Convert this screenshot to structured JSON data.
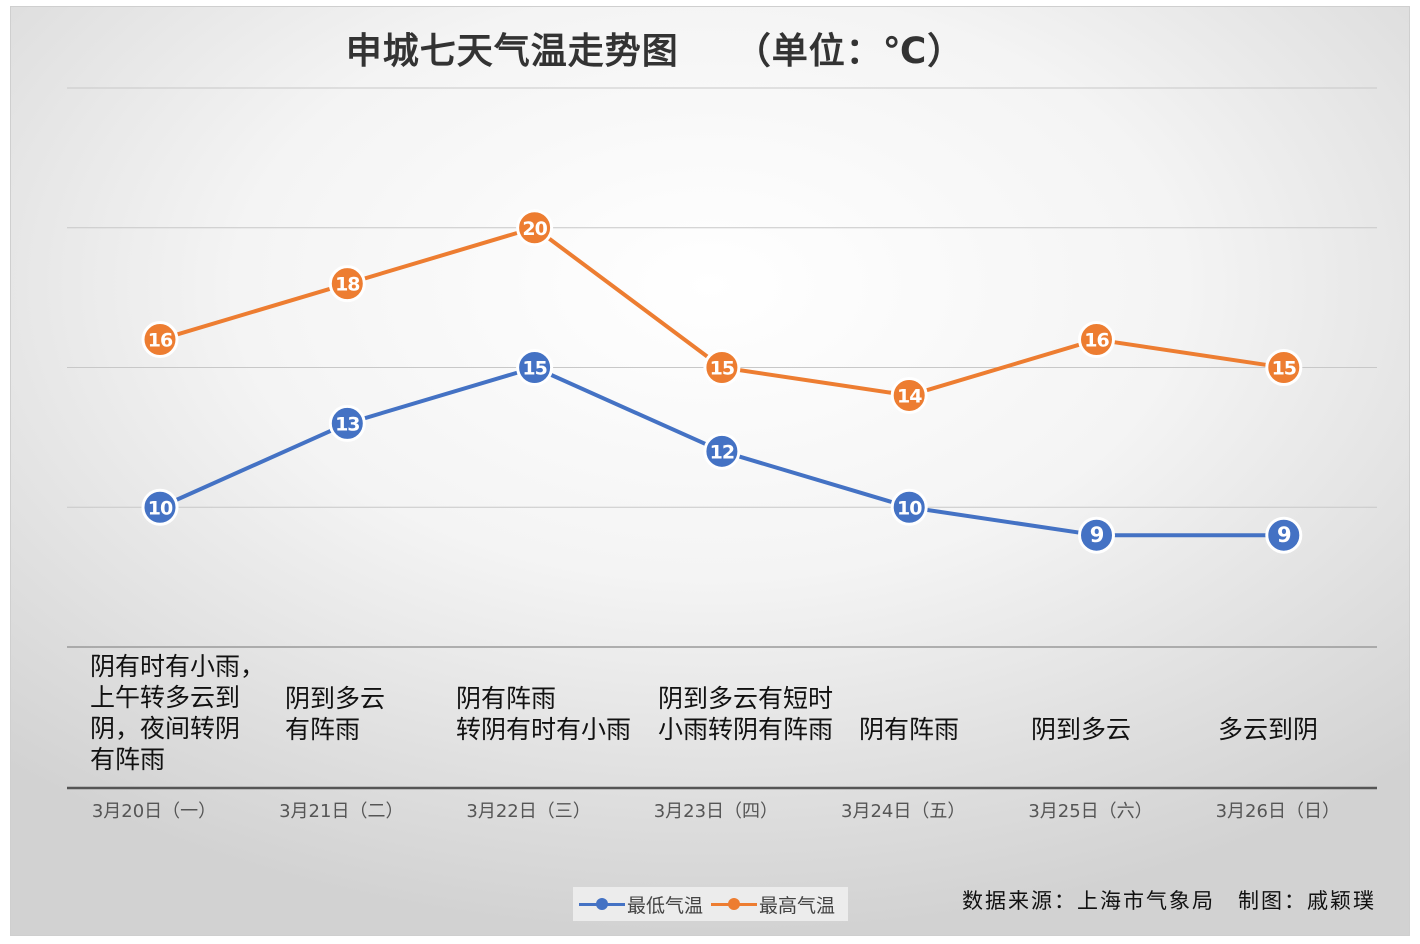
{
  "chart_data": {
    "type": "line",
    "title": "申城七天气温走势图　　（单位：℃）",
    "categories": [
      "3月20日（一）",
      "3月21日（二）",
      "3月22日（三）",
      "3月23日（四）",
      "3月24日（五）",
      "3月25日（六）",
      "3月26日（日）"
    ],
    "series": [
      {
        "name": "最低气温",
        "color": "#4472c4",
        "values": [
          10,
          13,
          15,
          12,
          10,
          9,
          9
        ]
      },
      {
        "name": "最高气温",
        "color": "#ed7d31",
        "values": [
          16,
          18,
          20,
          15,
          14,
          16,
          15
        ]
      }
    ],
    "ylim": [
      5,
      25
    ],
    "grid": true,
    "data_labels": true,
    "legend_position": "bottom",
    "weather": [
      "阴有时有小雨，\n上午转多云到\n阴，夜间转阴\n有阵雨",
      "阴到多云\n有阵雨",
      "阴有阵雨\n转阴有时有小雨",
      "阴到多云有短时\n小雨转阴有阵雨",
      "阴有阵雨",
      "阴到多云",
      "多云到阴"
    ]
  },
  "source_note": "数据来源：上海市气象局　制图：戚颖璞"
}
